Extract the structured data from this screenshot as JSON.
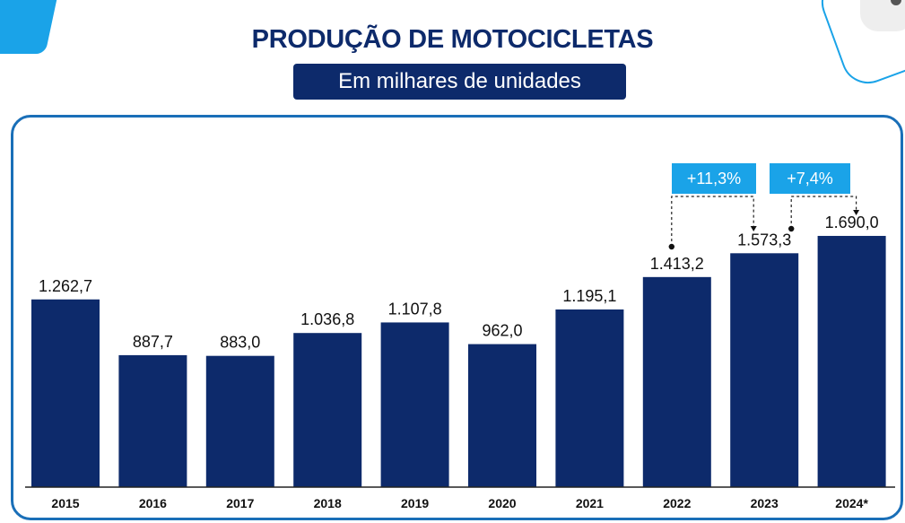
{
  "header": {
    "title": "PRODUÇÃO DE MOTOCICLETAS",
    "subtitle": "Em milhares de unidades"
  },
  "colors": {
    "bar": "#0d2a6b",
    "accent": "#1aa3e8",
    "frame": "#1a6fb8"
  },
  "chart_data": {
    "type": "bar",
    "categories": [
      "2015",
      "2016",
      "2017",
      "2018",
      "2019",
      "2020",
      "2021",
      "2022",
      "2023",
      "2024*"
    ],
    "values": [
      1262.7,
      887.7,
      883.0,
      1036.8,
      1107.8,
      962.0,
      1195.1,
      1413.2,
      1573.3,
      1690.0
    ],
    "value_labels": [
      "1.262,7",
      "887,7",
      "883,0",
      "1.036,8",
      "1.107,8",
      "962,0",
      "1.195,1",
      "1.413,2",
      "1.573,3",
      "1.690,0"
    ],
    "ylim": [
      0,
      1820
    ],
    "grid": false,
    "annotations": [
      {
        "text": "+11,3%",
        "from": "2022",
        "to": "2023"
      },
      {
        "text": "+7,4%",
        "from": "2023",
        "to": "2024*"
      }
    ]
  }
}
